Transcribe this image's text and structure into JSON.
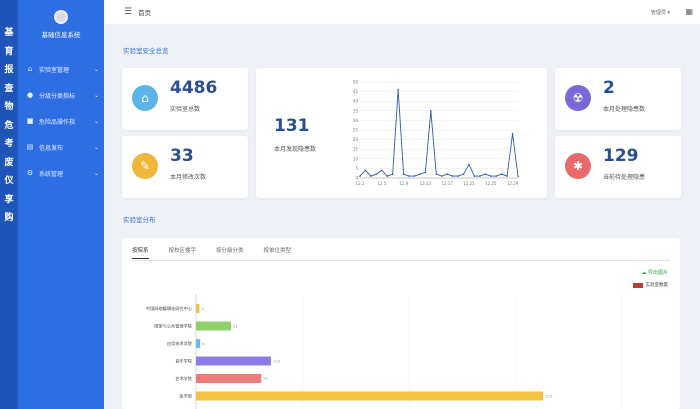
{
  "strip": [
    "基",
    "育",
    "报",
    "查",
    "物",
    "危",
    "考",
    "废",
    "仪",
    "享",
    "购"
  ],
  "sidebar": {
    "title": "基础信息系统",
    "items": [
      {
        "label": "实验室管理",
        "icon": "home-icon"
      },
      {
        "label": "分级分类指标",
        "icon": "person-icon"
      },
      {
        "label": "危险品操作指",
        "icon": "cube-icon"
      },
      {
        "label": "信息发布",
        "icon": "document-icon"
      },
      {
        "label": "系统管理",
        "icon": "gear-icon"
      }
    ]
  },
  "header": {
    "breadcrumb": "首页",
    "user": "管理员 ▾"
  },
  "section1": "实验室安全总览",
  "section2": "实验室分布",
  "stats": {
    "labs": {
      "value": "4486",
      "label": "实验室总数",
      "color": "#5bb4e8",
      "icon": "home-icon"
    },
    "repairs": {
      "value": "33",
      "label": "本月修改次数",
      "color": "#f0b83b",
      "icon": "wrench-icon"
    },
    "hazards_found": {
      "value": "131",
      "label": "本月发现隐患数"
    },
    "hazards_fixed": {
      "value": "2",
      "label": "本月处理隐患数",
      "color": "#7b68d8",
      "icon": "radiation-icon"
    },
    "pending": {
      "value": "129",
      "label": "当前待处理隐患",
      "color": "#e86a6a",
      "icon": "bug-icon"
    }
  },
  "tabs": [
    "按院系",
    "按校区楼宇",
    "按分级分类",
    "按单位类型"
  ],
  "download_label": "导出图片",
  "legend_label": "实验室数量",
  "chart_data": [
    {
      "type": "line",
      "x_ticks": [
        "12.1",
        "12.5",
        "12.9",
        "12.13",
        "12.17",
        "12.21",
        "12.25",
        "12.29"
      ],
      "x": [
        1,
        2,
        3,
        4,
        5,
        6,
        7,
        8,
        9,
        10,
        11,
        12,
        13,
        14,
        15,
        16,
        17,
        18,
        19,
        20,
        21,
        22,
        23,
        24,
        25,
        26,
        27,
        28,
        29,
        30
      ],
      "values": [
        1,
        4,
        1,
        2,
        4,
        1,
        2,
        46,
        2,
        1,
        1,
        2,
        3,
        35,
        2,
        1,
        2,
        1,
        1,
        2,
        7,
        1,
        1,
        2,
        1,
        1,
        2,
        1,
        23,
        1
      ],
      "ylim": [
        0,
        50
      ],
      "y_ticks": [
        0,
        5,
        10,
        15,
        20,
        25,
        30,
        35,
        40,
        45,
        50
      ],
      "color": "#2b5da8"
    },
    {
      "type": "bar",
      "orientation": "horizontal",
      "categories": [
        "中国网络编辑化研究中心",
        "国家与公共管理学院",
        "应用技术学院",
        "音乐学院",
        "艺术学院",
        "医学部"
      ],
      "values": [
        5,
        51,
        6,
        109,
        95,
        505
      ],
      "colors": [
        "#f5c242",
        "#8fd06a",
        "#6fb7ee",
        "#8c7ae6",
        "#ee7a7a",
        "#f5c242"
      ],
      "series_color": "#c0392b"
    }
  ]
}
